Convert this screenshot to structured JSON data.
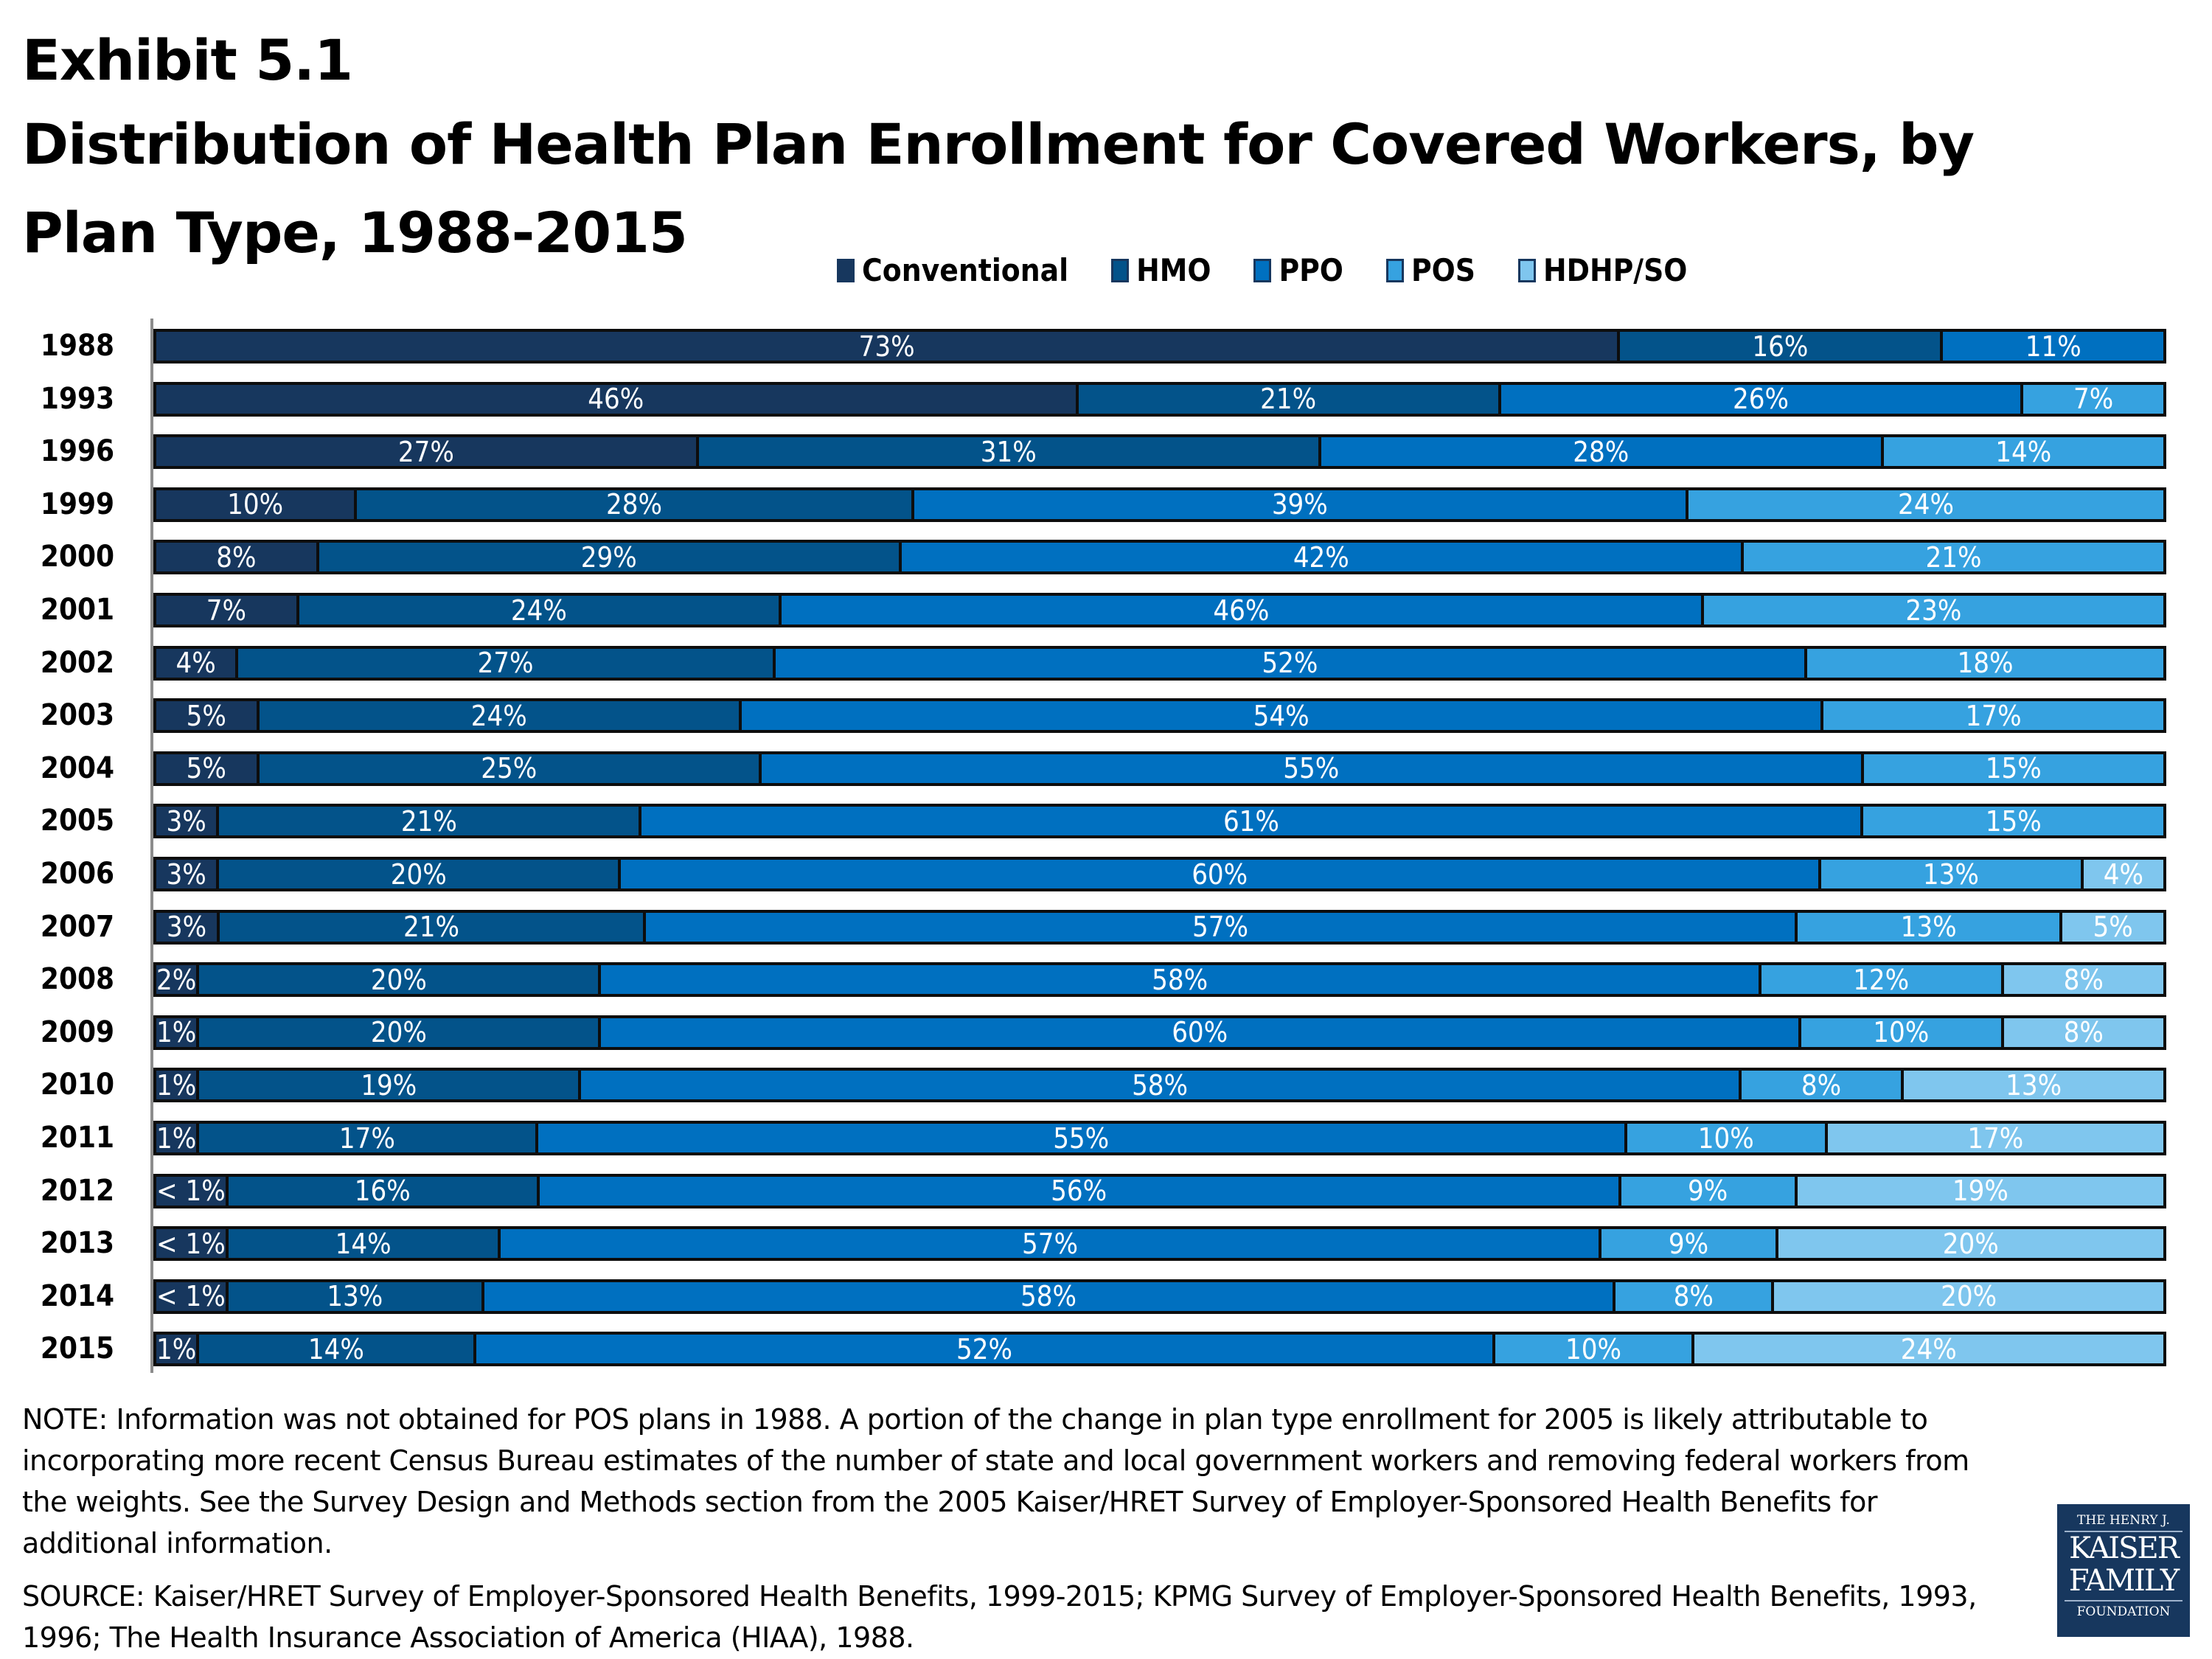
{
  "title_line1": "Exhibit 5.1",
  "title_line2": "Distribution of Health Plan Enrollment for Covered Workers, by Plan Type, 1988-2015",
  "note": "NOTE: Information was not obtained for POS plans in 1988.  A portion of the change in plan type enrollment for 2005 is likely attributable to incorporating more recent Census Bureau estimates of the number of state and local government workers and removing federal workers from the weights.  See the Survey Design and Methods section from the 2005 Kaiser/HRET Survey of Employer-Sponsored Health Benefits for additional information.",
  "source": "SOURCE:  Kaiser/HRET Survey of Employer-Sponsored Health Benefits, 1999-2015; KPMG Survey of Employer-Sponsored Health Benefits, 1993, 1996; The Health Insurance Association of America (HIAA), 1988.",
  "logo": {
    "line1": "THE HENRY J.",
    "line2": "KAISER",
    "line3": "FAMILY",
    "line4": "FOUNDATION"
  },
  "chart_data": {
    "type": "bar",
    "orientation": "horizontal",
    "stacked": "100%",
    "title": "Distribution of Health Plan Enrollment for Covered Workers, by Plan Type, 1988-2015",
    "legend_placement": "top",
    "grid": false,
    "categories": [
      "1988",
      "1993",
      "1996",
      "1999",
      "2000",
      "2001",
      "2002",
      "2003",
      "2004",
      "2005",
      "2006",
      "2007",
      "2008",
      "2009",
      "2010",
      "2011",
      "2012",
      "2013",
      "2014",
      "2015"
    ],
    "series": [
      {
        "name": "Conventional",
        "color": "#17375e",
        "values": [
          73,
          46,
          27,
          10,
          8,
          7,
          4,
          5,
          5,
          3,
          3,
          3,
          2,
          1,
          1,
          1,
          1,
          1,
          1,
          1
        ],
        "labels": [
          "73%",
          "46%",
          "27%",
          "10%",
          "8%",
          "7%",
          "4%",
          "5%",
          "5%",
          "3%",
          "3%",
          "3%",
          "2%",
          "1%",
          "1%",
          "1%",
          "< 1%",
          "< 1%",
          "< 1%",
          "1%"
        ]
      },
      {
        "name": "HMO",
        "color": "#03538a",
        "values": [
          16,
          21,
          31,
          28,
          29,
          24,
          27,
          24,
          25,
          21,
          20,
          21,
          20,
          20,
          19,
          17,
          16,
          14,
          13,
          14
        ]
      },
      {
        "name": "PPO",
        "color": "#0070c0",
        "values": [
          11,
          26,
          28,
          39,
          42,
          46,
          52,
          54,
          55,
          61,
          60,
          57,
          58,
          60,
          58,
          55,
          56,
          57,
          58,
          52
        ]
      },
      {
        "name": "POS",
        "color": "#36a2e0",
        "values": [
          null,
          7,
          14,
          24,
          21,
          23,
          18,
          17,
          15,
          15,
          13,
          13,
          12,
          10,
          8,
          10,
          9,
          9,
          8,
          10
        ]
      },
      {
        "name": "HDHP/SO",
        "color": "#7fc6ee",
        "values": [
          null,
          null,
          null,
          null,
          null,
          null,
          null,
          null,
          null,
          null,
          4,
          5,
          8,
          8,
          13,
          17,
          19,
          20,
          20,
          24
        ]
      }
    ]
  }
}
